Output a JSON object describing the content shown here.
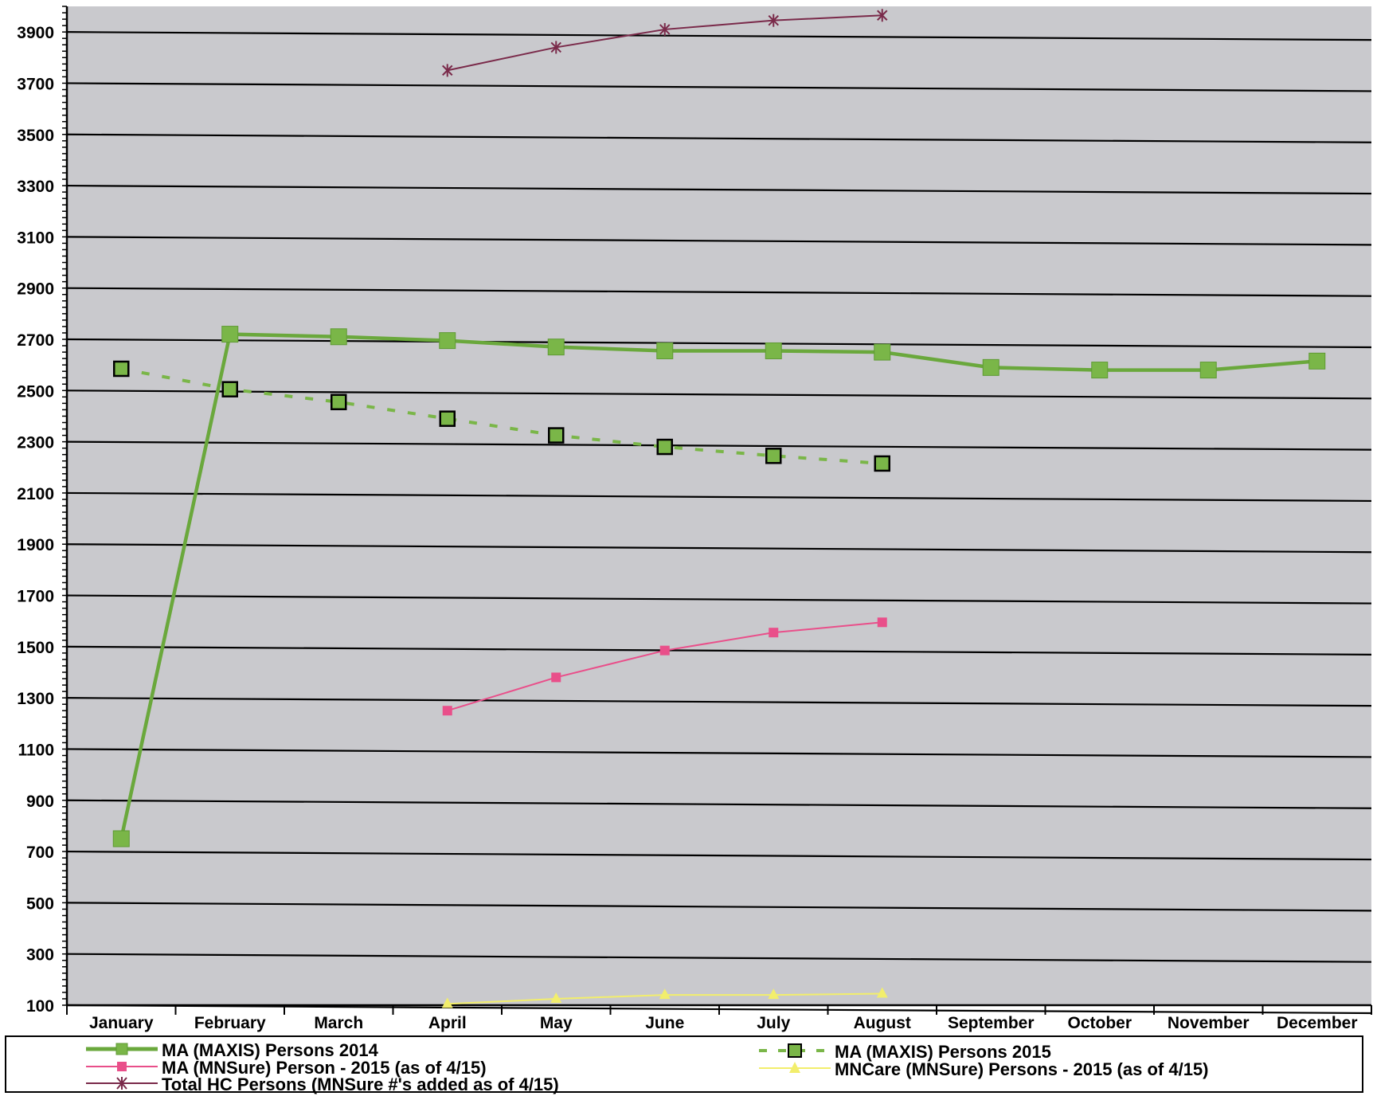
{
  "chart_data": {
    "type": "line",
    "categories": [
      "January",
      "February",
      "March",
      "April",
      "May",
      "June",
      "July",
      "August",
      "September",
      "October",
      "November",
      "December"
    ],
    "ylim": [
      100,
      4000
    ],
    "yticks": [
      100,
      300,
      500,
      700,
      900,
      1100,
      1300,
      1500,
      1700,
      1900,
      2100,
      2300,
      2500,
      2700,
      2900,
      3100,
      3300,
      3500,
      3700,
      3900
    ],
    "ytick_labels": [
      "100",
      "300",
      "500",
      "700",
      "900",
      "1100",
      "1300",
      "1500",
      "1700",
      "1900",
      "2100",
      "2300",
      "2500",
      "2700",
      "2900",
      "3100",
      "3300",
      "3500",
      "3700",
      "3900"
    ],
    "grid": true,
    "legend_position": "bottom",
    "series": [
      {
        "name": "MA (MAXIS) Persons 2014",
        "color": "#7ab648",
        "marker": "square",
        "style": "solid",
        "values": [
          750,
          2720,
          2710,
          2695,
          2670,
          2655,
          2655,
          2650,
          2590,
          2580,
          2580,
          2615
        ]
      },
      {
        "name": "MA (MAXIS) Persons 2015",
        "color": "#7ab648",
        "marker": "square-outlined",
        "style": "dashed",
        "values": [
          2585,
          2505,
          2455,
          2390,
          2325,
          2280,
          2245,
          2215,
          null,
          null,
          null,
          null
        ]
      },
      {
        "name": "MA (MNSure) Person - 2015 (as of 4/15)",
        "color": "#e94f8a",
        "marker": "square",
        "style": "solid",
        "values": [
          null,
          null,
          null,
          1250,
          1380,
          1485,
          1555,
          1595,
          null,
          null,
          null,
          null
        ]
      },
      {
        "name": "MNCare (MNSure) Persons - 2015 (as of 4/15)",
        "color": "#f2ee6c",
        "marker": "triangle",
        "style": "solid",
        "values": [
          null,
          null,
          null,
          105,
          125,
          140,
          140,
          145,
          null,
          null,
          null,
          null
        ]
      },
      {
        "name": "Total HC Persons (MNSure #'s added as of 4/15)",
        "color": "#7a2a4a",
        "marker": "star",
        "style": "solid",
        "values": [
          null,
          null,
          null,
          3750,
          3840,
          3910,
          3945,
          3965,
          null,
          null,
          null,
          null
        ]
      }
    ]
  },
  "colors": {
    "plot_background": "#c9c9cd",
    "gridline": "#000000"
  }
}
